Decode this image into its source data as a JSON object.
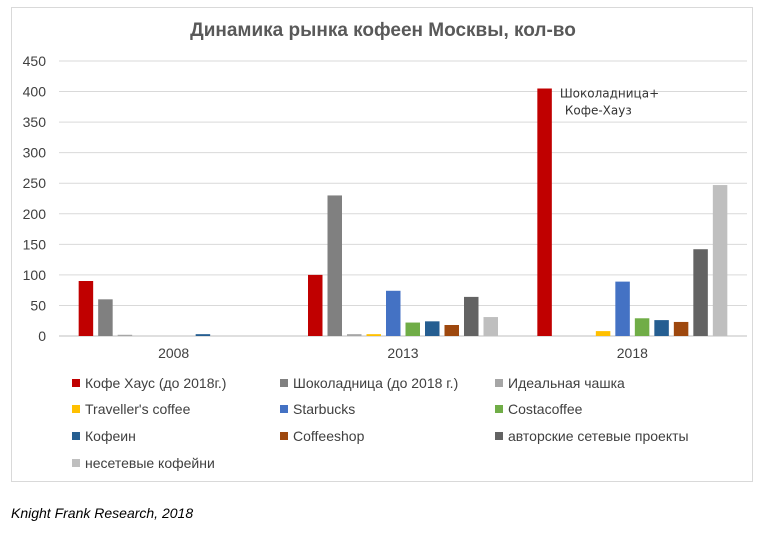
{
  "chart_data": {
    "type": "bar",
    "title": "Динамика рынка кофеен Москвы, кол-во",
    "xlabel": "",
    "ylabel": "",
    "ylim": [
      0,
      450
    ],
    "yticks": [
      0,
      50,
      100,
      150,
      200,
      250,
      300,
      350,
      400,
      450
    ],
    "grid": true,
    "legend_position": "bottom",
    "categories": [
      "2008",
      "2013",
      "2018"
    ],
    "series": [
      {
        "name": "Кофе Хаус (до 2018г.)",
        "color": "#c00000",
        "values": [
          90,
          100,
          405
        ]
      },
      {
        "name": "Шоколадница (до 2018 г.)",
        "color": "#808080",
        "values": [
          60,
          230,
          null
        ]
      },
      {
        "name": "Идеальная чашка",
        "color": "#a6a6a6",
        "values": [
          2,
          3,
          null
        ]
      },
      {
        "name": "Traveller's coffee",
        "color": "#ffc000",
        "values": [
          0,
          3,
          8
        ]
      },
      {
        "name": "Starbucks",
        "color": "#4472c4",
        "values": [
          0,
          74,
          89
        ]
      },
      {
        "name": "Costacoffee",
        "color": "#70ad47",
        "values": [
          0,
          22,
          29
        ]
      },
      {
        "name": "Кофеин",
        "color": "#255e91",
        "values": [
          3,
          24,
          26
        ]
      },
      {
        "name": "Coffeeshop",
        "color": "#9e480e",
        "values": [
          0,
          18,
          23
        ]
      },
      {
        "name": "авторские сетевые проекты",
        "color": "#636363",
        "values": [
          0,
          64,
          142
        ]
      },
      {
        "name": "несетевые кофейни",
        "color": "#bfbfbf",
        "values": [
          0,
          31,
          247
        ]
      }
    ],
    "annotations": [
      {
        "text": "Шоколадница+",
        "category": "2018",
        "series": "Кофе Хаус (до 2018г.)"
      },
      {
        "text": "Кофе-Хауз",
        "category": "2018",
        "series": "Кофе Хаус (до 2018г.)"
      }
    ]
  },
  "source": "Knight Frank Research, 2018"
}
